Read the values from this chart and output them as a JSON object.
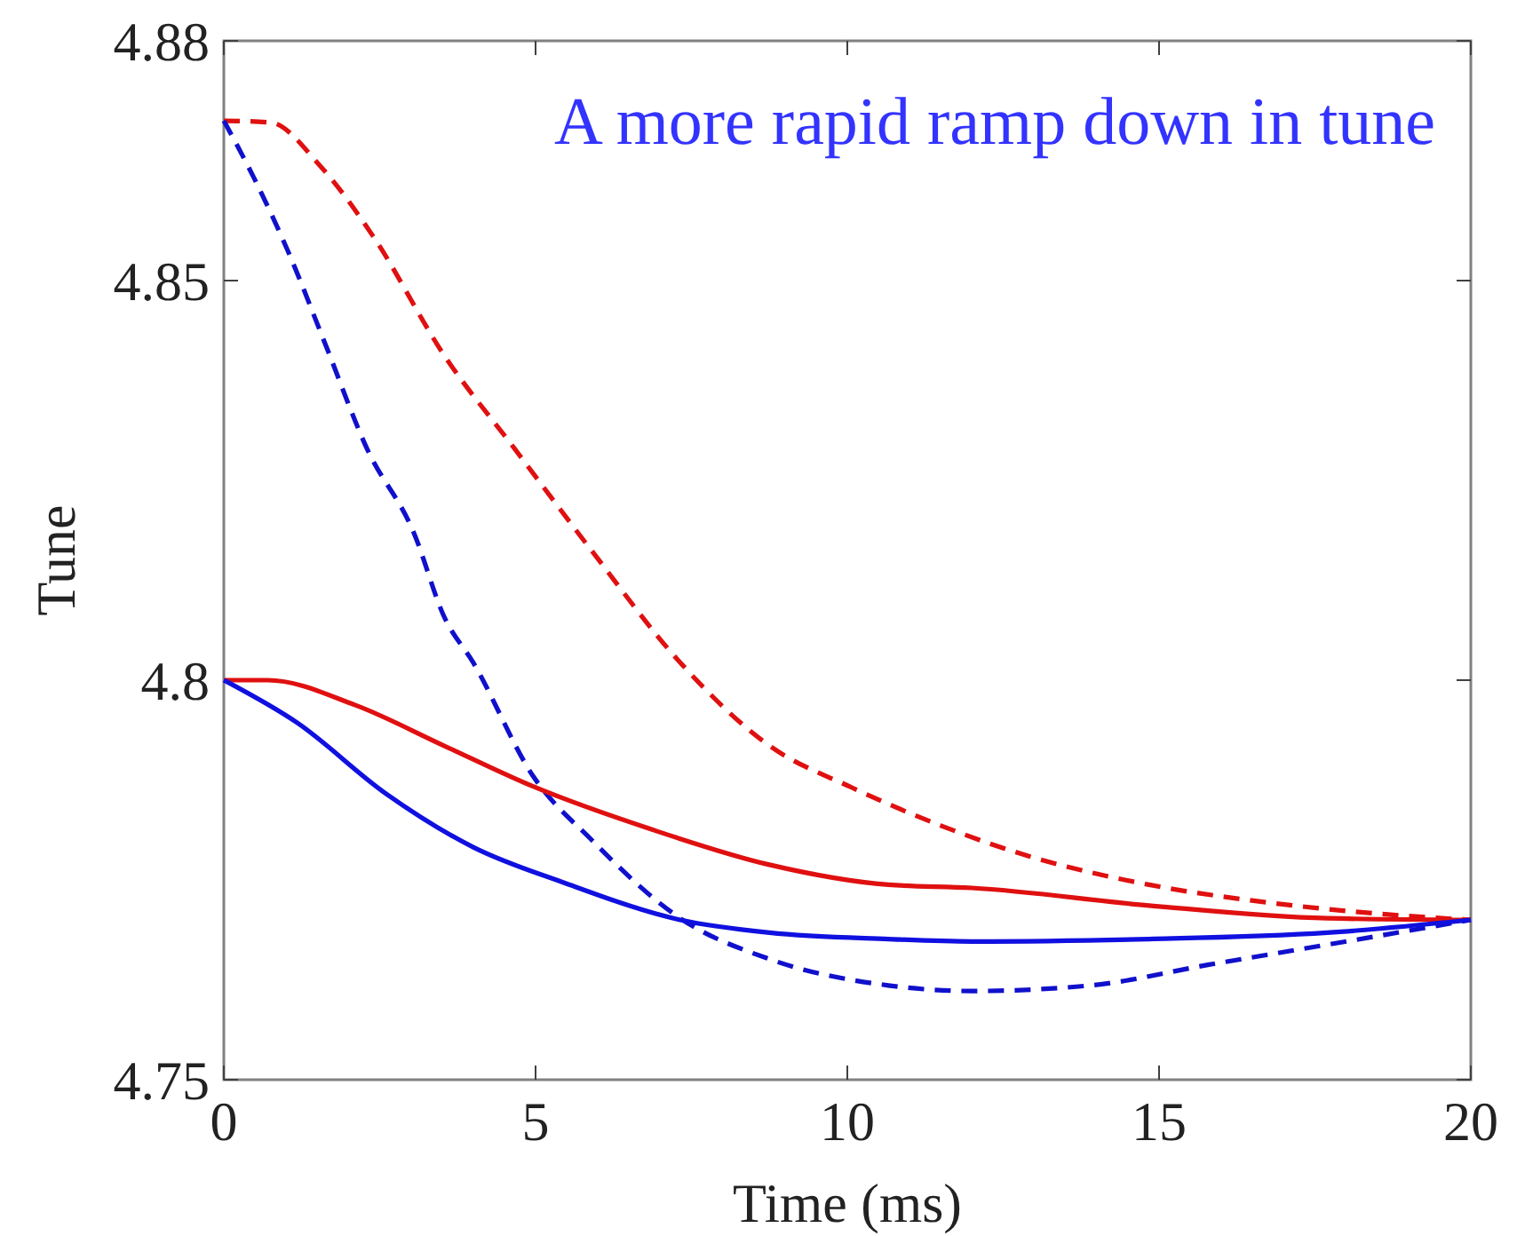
{
  "chart_data": {
    "type": "line",
    "xlabel": "Time (ms)",
    "ylabel": "Tune",
    "annotations": [
      "A more rapid ramp down in tune"
    ],
    "xlim": [
      0,
      20
    ],
    "ylim": [
      4.75,
      4.88
    ],
    "xticks": [
      0,
      5,
      10,
      15,
      20
    ],
    "yticks": [
      4.75,
      4.8,
      4.85,
      4.88
    ],
    "series": [
      {
        "color": "#e01010",
        "line_style": "dashed",
        "x": [
          0,
          0.74,
          1.54,
          2.39,
          3.53,
          4.67,
          5.9,
          7.32,
          8.75,
          10.09,
          11.5,
          12.9,
          14.84,
          16.72,
          18.63,
          20
        ],
        "values": [
          4.87,
          4.8698,
          4.8644,
          4.8556,
          4.8407,
          4.8289,
          4.8162,
          4.8022,
          4.7918,
          4.7865,
          4.7818,
          4.778,
          4.7744,
          4.7722,
          4.7707,
          4.77
        ]
      },
      {
        "color": "#1010cc",
        "line_style": "dashed",
        "x": [
          0,
          0.48,
          1.05,
          1.62,
          2.3,
          3.05,
          3.53,
          4.0,
          4.96,
          5.9,
          7.32,
          8.75,
          10.66,
          12.0,
          13.9,
          15.8,
          17.7,
          20
        ],
        "values": [
          4.87,
          4.8629,
          4.8533,
          4.8422,
          4.8289,
          4.8184,
          4.808,
          4.8022,
          4.788,
          4.78,
          4.7702,
          4.7651,
          4.7618,
          4.7611,
          4.7618,
          4.7644,
          4.7669,
          4.77
        ]
      },
      {
        "color": "#e01010",
        "line_style": "solid",
        "x": [
          0,
          0.7,
          2.1,
          3.53,
          4.96,
          6.87,
          8.75,
          10.66,
          12.0,
          14.84,
          17.7,
          20
        ],
        "values": [
          4.8,
          4.8,
          4.7969,
          4.7918,
          4.7867,
          4.7813,
          4.7769,
          4.7744,
          4.774,
          4.7718,
          4.7702,
          4.77
        ]
      },
      {
        "color": "#1010e0",
        "line_style": "solid",
        "x": [
          0,
          1.17,
          2.6,
          4.0,
          5.44,
          7.32,
          8.75,
          10.66,
          12.0,
          14.84,
          17.7,
          20
        ],
        "values": [
          4.8,
          4.7947,
          4.7858,
          4.7791,
          4.7747,
          4.77,
          4.7684,
          4.7676,
          4.7673,
          4.7676,
          4.7684,
          4.77
        ]
      }
    ]
  }
}
